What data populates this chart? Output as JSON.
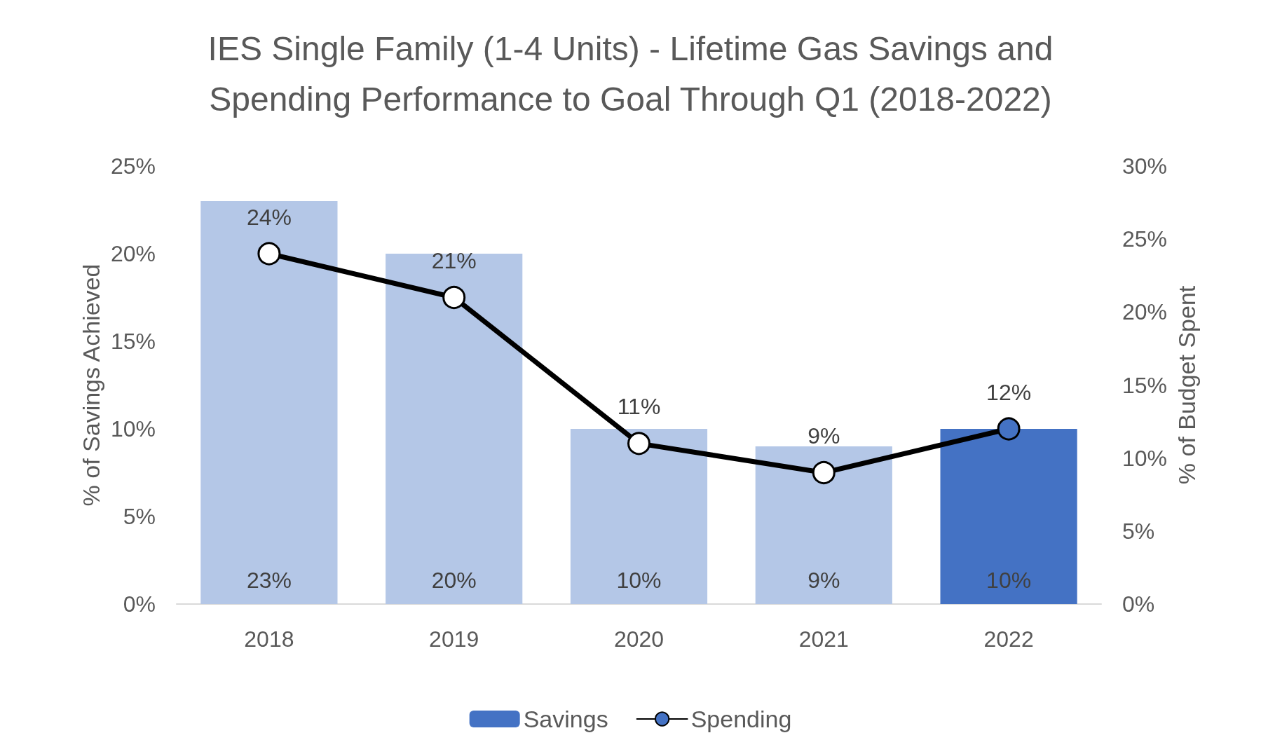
{
  "chart_data": {
    "type": "bar",
    "title": "IES Single Family (1-4 Units) - Lifetime Gas Savings and\nSpending Performance to Goal Through Q1 (2018-2022)",
    "categories": [
      "2018",
      "2019",
      "2020",
      "2021",
      "2022"
    ],
    "ylabel": "% of Savings Achieved",
    "y2label": "% of Budget Spent",
    "ylim": [
      0,
      25
    ],
    "yticks": [
      {
        "value": 0,
        "label": "0%"
      },
      {
        "value": 5,
        "label": "5%"
      },
      {
        "value": 10,
        "label": "10%"
      },
      {
        "value": 15,
        "label": "15%"
      },
      {
        "value": 20,
        "label": "20%"
      },
      {
        "value": 25,
        "label": "25%"
      }
    ],
    "y2lim": [
      0,
      30
    ],
    "y2ticks": [
      {
        "value": 0,
        "label": "0%"
      },
      {
        "value": 5,
        "label": "5%"
      },
      {
        "value": 10,
        "label": "10%"
      },
      {
        "value": 15,
        "label": "15%"
      },
      {
        "value": 20,
        "label": "20%"
      },
      {
        "value": 25,
        "label": "25%"
      },
      {
        "value": 30,
        "label": "30%"
      }
    ],
    "series": [
      {
        "name": "Savings",
        "color": "#4472c4",
        "colors": [
          "#b4c7e7",
          "#b4c7e7",
          "#b4c7e7",
          "#b4c7e7",
          "#4472c4"
        ],
        "values": [
          23,
          20,
          10,
          9,
          10
        ],
        "value_labels": [
          "23%",
          "20%",
          "10%",
          "9%",
          "10%"
        ]
      },
      {
        "name": "Spending",
        "type": "line",
        "axis": "y2",
        "color": "#000000",
        "colors": [
          "#ffffff",
          "#ffffff",
          "#ffffff",
          "#ffffff",
          "#4472c4"
        ],
        "values": [
          24,
          21,
          11,
          9,
          12
        ],
        "value_labels": [
          "24%",
          "21%",
          "11%",
          "9%",
          "12%"
        ]
      }
    ],
    "marker": "circle",
    "line_style": "solid",
    "legend": "bottom"
  }
}
